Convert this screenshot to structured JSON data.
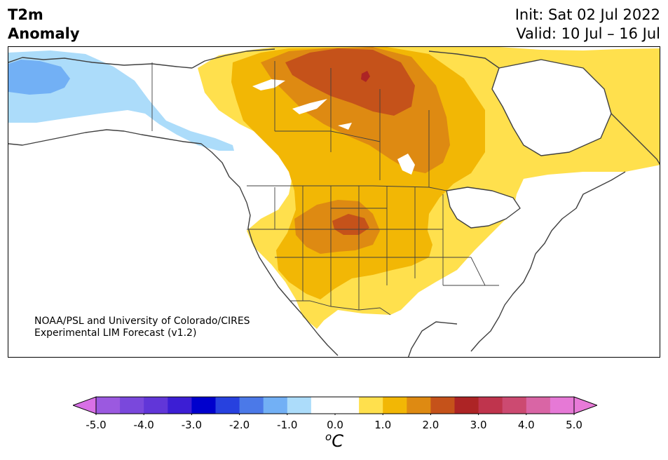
{
  "title": {
    "left_line1": "T2m",
    "left_line2": "Anomaly",
    "init": "Init: Sat 02 Jul 2022",
    "valid": "Valid: 10 Jul – 16 Jul"
  },
  "credit": {
    "line1": "NOAA/PSL and University of Colorado/CIRES",
    "line2": "Experimental LIM Forecast (v1.2)"
  },
  "colorbar": {
    "unit_superscript": "o",
    "unit_letter": "C",
    "tick_labels": [
      "-5.0",
      "-4.0",
      "-3.0",
      "-2.0",
      "-1.0",
      "0.0",
      "1.0",
      "2.0",
      "3.0",
      "4.0",
      "5.0"
    ],
    "levels": [
      {
        "range": [
          -5.0,
          -4.5
        ],
        "color": "#9b59e0"
      },
      {
        "range": [
          -4.5,
          -4.0
        ],
        "color": "#7a48dc"
      },
      {
        "range": [
          -4.0,
          -3.5
        ],
        "color": "#6136d8"
      },
      {
        "range": [
          -3.5,
          -3.0
        ],
        "color": "#3c1ed4"
      },
      {
        "range": [
          -3.0,
          -2.5
        ],
        "color": "#0000cd"
      },
      {
        "range": [
          -2.5,
          -2.0
        ],
        "color": "#2741df"
      },
      {
        "range": [
          -2.0,
          -1.5
        ],
        "color": "#4b79e8"
      },
      {
        "range": [
          -1.5,
          -1.0
        ],
        "color": "#72b0f5"
      },
      {
        "range": [
          -1.0,
          -0.5
        ],
        "color": "#acdcfa"
      },
      {
        "range": [
          -0.5,
          0.5
        ],
        "color": "#ffffff"
      },
      {
        "range": [
          0.5,
          1.0
        ],
        "color": "#ffe04d"
      },
      {
        "range": [
          1.0,
          1.5
        ],
        "color": "#f2b705"
      },
      {
        "range": [
          1.5,
          2.0
        ],
        "color": "#de8a12"
      },
      {
        "range": [
          2.0,
          2.5
        ],
        "color": "#c5521a"
      },
      {
        "range": [
          2.5,
          3.0
        ],
        "color": "#ad2425"
      },
      {
        "range": [
          3.0,
          3.5
        ],
        "color": "#bf344d"
      },
      {
        "range": [
          3.5,
          4.0
        ],
        "color": "#cc4a71"
      },
      {
        "range": [
          4.0,
          4.5
        ],
        "color": "#d965a5"
      },
      {
        "range": [
          4.5,
          5.0
        ],
        "color": "#e679d6"
      }
    ],
    "under_color": "#d870e6",
    "over_color": "#e87ad8"
  },
  "map": {
    "region": "North America",
    "field": "2 m temperature anomaly",
    "colors": {
      "anom_0_5": "#ffe04d",
      "anom_1_0": "#f2b705",
      "anom_1_5": "#de8a12",
      "anom_2_0": "#c5521a",
      "anom_2_5": "#ad2425",
      "anom_neg_0_5": "#acdcfa",
      "anom_neg_1_0": "#72b0f5",
      "coast": "#404040"
    }
  }
}
